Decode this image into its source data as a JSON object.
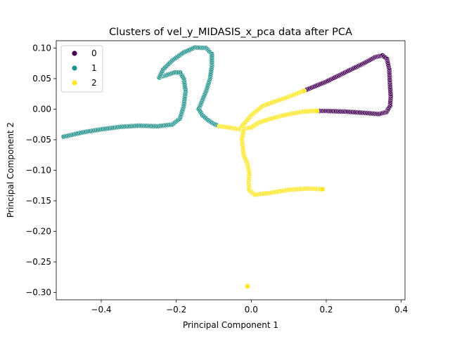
{
  "chart_data": {
    "type": "scatter",
    "title": "Clusters of vel_y_MIDASIS_x_pca data after PCA",
    "xlabel": "Principal Component 1",
    "ylabel": "Principal Component 2",
    "xlim": [
      -0.52,
      0.41
    ],
    "ylim": [
      -0.312,
      0.112
    ],
    "xticks": [
      -0.4,
      -0.2,
      0.0,
      0.2,
      0.4
    ],
    "xtick_labels": [
      "−0.4",
      "−0.2",
      "0.0",
      "0.2",
      "0.4"
    ],
    "yticks": [
      0.1,
      0.05,
      0.0,
      -0.05,
      -0.1,
      -0.15,
      -0.2,
      -0.25,
      -0.3
    ],
    "ytick_labels": [
      "0.10",
      "0.05",
      "0.00",
      "−0.05",
      "−0.10",
      "−0.15",
      "−0.20",
      "−0.25",
      "−0.30"
    ],
    "grid": false,
    "legend": {
      "placement": "upper-left",
      "entries": [
        {
          "label": "0",
          "color": "#440154"
        },
        {
          "label": "1",
          "color": "#21918c"
        },
        {
          "label": "2",
          "color": "#fde725"
        }
      ]
    },
    "series": [
      {
        "name": "0",
        "color": "#440154",
        "path": [
          [
            0.14,
            0.03
          ],
          [
            0.2,
            0.045
          ],
          [
            0.25,
            0.06
          ],
          [
            0.3,
            0.075
          ],
          [
            0.33,
            0.085
          ],
          [
            0.35,
            0.088
          ],
          [
            0.362,
            0.082
          ],
          [
            0.368,
            0.065
          ],
          [
            0.37,
            0.04
          ],
          [
            0.372,
            0.02
          ],
          [
            0.37,
            0.005
          ],
          [
            0.36,
            -0.005
          ],
          [
            0.34,
            -0.008
          ],
          [
            0.3,
            -0.006
          ],
          [
            0.25,
            -0.004
          ],
          [
            0.2,
            -0.003
          ],
          [
            0.175,
            -0.003
          ]
        ]
      },
      {
        "name": "1",
        "color": "#21918c",
        "path": [
          [
            -0.5,
            -0.045
          ],
          [
            -0.45,
            -0.038
          ],
          [
            -0.4,
            -0.033
          ],
          [
            -0.35,
            -0.029
          ],
          [
            -0.3,
            -0.027
          ],
          [
            -0.25,
            -0.028
          ],
          [
            -0.21,
            -0.025
          ],
          [
            -0.19,
            -0.015
          ],
          [
            -0.18,
            0.005
          ],
          [
            -0.175,
            0.03
          ],
          [
            -0.18,
            0.05
          ],
          [
            -0.19,
            0.06
          ],
          [
            -0.205,
            0.06
          ],
          [
            -0.23,
            0.055
          ],
          [
            -0.245,
            0.052
          ],
          [
            -0.235,
            0.065
          ],
          [
            -0.21,
            0.08
          ],
          [
            -0.18,
            0.093
          ],
          [
            -0.15,
            0.101
          ],
          [
            -0.12,
            0.1
          ],
          [
            -0.105,
            0.09
          ],
          [
            -0.105,
            0.07
          ],
          [
            -0.11,
            0.05
          ],
          [
            -0.12,
            0.03
          ],
          [
            -0.13,
            0.015
          ],
          [
            -0.14,
            0.0
          ],
          [
            -0.13,
            -0.01
          ],
          [
            -0.115,
            -0.018
          ],
          [
            -0.1,
            -0.024
          ],
          [
            -0.085,
            -0.028
          ]
        ]
      },
      {
        "name": "2",
        "color": "#fde725",
        "path": [
          [
            -0.085,
            -0.028
          ],
          [
            -0.06,
            -0.03
          ],
          [
            -0.03,
            -0.033
          ],
          [
            0.0,
            -0.03
          ],
          [
            0.02,
            -0.022
          ],
          [
            0.05,
            -0.016
          ],
          [
            0.08,
            -0.011
          ],
          [
            0.11,
            -0.007
          ],
          [
            0.14,
            -0.004
          ],
          [
            0.16,
            -0.003
          ],
          [
            0.175,
            -0.003
          ]
        ],
        "branches": [
          [
            [
              -0.03,
              -0.032
            ],
            [
              0.0,
              -0.01
            ],
            [
              0.03,
              0.005
            ],
            [
              0.06,
              0.012
            ],
            [
              0.09,
              0.018
            ],
            [
              0.12,
              0.025
            ],
            [
              0.14,
              0.03
            ]
          ],
          [
            [
              -0.02,
              -0.033
            ],
            [
              -0.025,
              -0.05
            ],
            [
              -0.02,
              -0.075
            ],
            [
              -0.01,
              -0.09
            ],
            [
              -0.005,
              -0.105
            ],
            [
              -0.007,
              -0.12
            ],
            [
              -0.005,
              -0.133
            ],
            [
              0.01,
              -0.14
            ],
            [
              0.05,
              -0.137
            ],
            [
              0.1,
              -0.132
            ],
            [
              0.15,
              -0.13
            ],
            [
              0.19,
              -0.131
            ]
          ]
        ],
        "outliers": [
          [
            -0.01,
            -0.29
          ]
        ]
      }
    ]
  }
}
